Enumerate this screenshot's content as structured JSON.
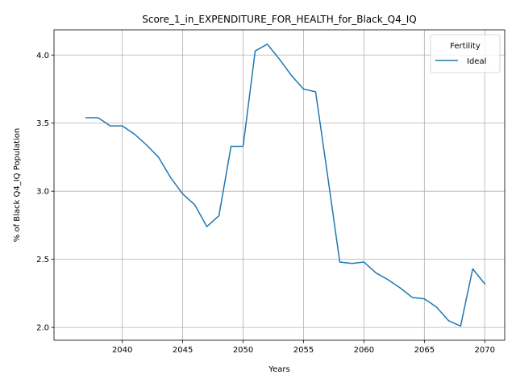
{
  "chart_data": {
    "type": "line",
    "title": "Score_1_in_EXPENDITURE_FOR_HEALTH_for_Black_Q4_IQ",
    "xlabel": "Years",
    "ylabel": "% of Black Q4_IQ Population",
    "xlim": [
      2034.35,
      2071.65
    ],
    "ylim": [
      1.906,
      4.185
    ],
    "xticks": [
      2040,
      2045,
      2050,
      2055,
      2060,
      2065,
      2070
    ],
    "yticks": [
      2.0,
      2.5,
      3.0,
      3.5,
      4.0
    ],
    "xtick_labels": [
      "2040",
      "2045",
      "2050",
      "2055",
      "2060",
      "2065",
      "2070"
    ],
    "ytick_labels": [
      "2.0",
      "2.5",
      "3.0",
      "3.5",
      "4.0"
    ],
    "grid": true,
    "legend": {
      "title": "Fertility",
      "position": "top-right"
    },
    "series": [
      {
        "name": "Ideal",
        "color": "#1f77b4",
        "x": [
          2037,
          2038,
          2039,
          2040,
          2041,
          2042,
          2043,
          2044,
          2045,
          2046,
          2047,
          2048,
          2049,
          2050,
          2051,
          2052,
          2053,
          2054,
          2055,
          2056,
          2057,
          2058,
          2059,
          2060,
          2061,
          2062,
          2063,
          2064,
          2065,
          2066,
          2067,
          2068,
          2069,
          2070
        ],
        "y": [
          3.54,
          3.54,
          3.48,
          3.48,
          3.42,
          3.34,
          3.25,
          3.1,
          2.98,
          2.9,
          2.74,
          2.82,
          3.33,
          3.33,
          4.03,
          4.08,
          3.97,
          3.85,
          3.75,
          3.73,
          3.11,
          2.48,
          2.47,
          2.48,
          2.4,
          2.35,
          2.29,
          2.22,
          2.21,
          2.15,
          2.05,
          2.01,
          2.43,
          2.32
        ]
      }
    ]
  }
}
